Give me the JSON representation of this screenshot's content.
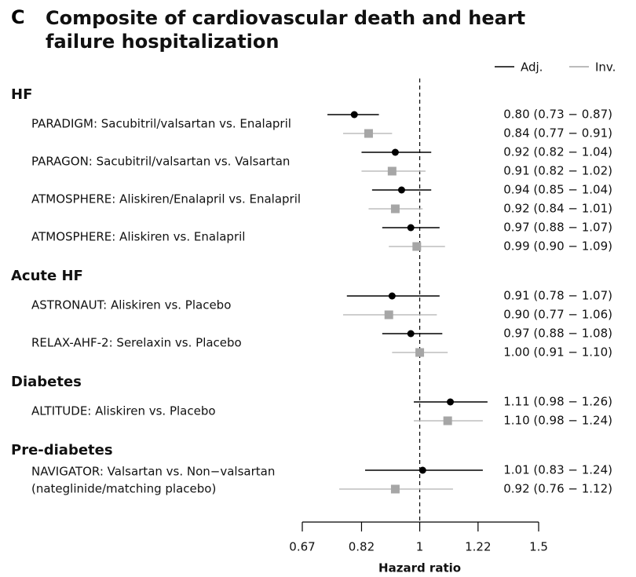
{
  "chart_data": {
    "type": "forest",
    "panel_label": "C",
    "title": "Composite of cardiovascular death and heart failure hospitalization",
    "xlabel": "Hazard ratio",
    "xscale": "log",
    "xlim": [
      0.67,
      1.5
    ],
    "xticks": [
      0.67,
      0.82,
      1,
      1.22,
      1.5
    ],
    "reference_line": 1,
    "series": [
      {
        "name": "Adj.",
        "color": "#000000"
      },
      {
        "name": "Inv.",
        "color": "#a6a6a6"
      }
    ],
    "groups": [
      {
        "name": "HF",
        "categories": [
          "PARADIGM: Sacubitril/valsartan vs. Enalapril",
          "PARAGON: Sacubitril/valsartan vs. Valsartan",
          "ATMOSPHERE: Aliskiren/Enalapril vs. Enalapril",
          "ATMOSPHERE: Aliskiren vs. Enalapril"
        ],
        "series": [
          {
            "values": [
              0.8,
              0.92,
              0.94,
              0.97
            ],
            "lower": [
              0.73,
              0.82,
              0.85,
              0.88
            ],
            "upper": [
              0.87,
              1.04,
              1.04,
              1.07
            ],
            "value_labels": [
              "0.80 (0.73 − 0.87)",
              "0.92 (0.82 − 1.04)",
              "0.94 (0.85 − 1.04)",
              "0.97 (0.88 − 1.07)"
            ]
          },
          {
            "values": [
              0.84,
              0.91,
              0.92,
              0.99
            ],
            "lower": [
              0.77,
              0.82,
              0.84,
              0.9
            ],
            "upper": [
              0.91,
              1.02,
              1.01,
              1.09
            ],
            "value_labels": [
              "0.84 (0.77 − 0.91)",
              "0.91 (0.82 − 1.02)",
              "0.92 (0.84 − 1.01)",
              "0.99 (0.90 − 1.09)"
            ]
          }
        ]
      },
      {
        "name": "Acute HF",
        "categories": [
          "ASTRONAUT: Aliskiren vs. Placebo",
          "RELAX-AHF-2: Serelaxin vs. Placebo"
        ],
        "series": [
          {
            "values": [
              0.91,
              0.97
            ],
            "lower": [
              0.78,
              0.88
            ],
            "upper": [
              1.07,
              1.08
            ],
            "value_labels": [
              "0.91 (0.78 − 1.07)",
              "0.97 (0.88 − 1.08)"
            ]
          },
          {
            "values": [
              0.9,
              1.0
            ],
            "lower": [
              0.77,
              0.91
            ],
            "upper": [
              1.06,
              1.1
            ],
            "value_labels": [
              "0.90 (0.77 − 1.06)",
              "1.00 (0.91 − 1.10)"
            ]
          }
        ]
      },
      {
        "name": "Diabetes",
        "categories": [
          "ALTITUDE: Aliskiren vs. Placebo"
        ],
        "series": [
          {
            "values": [
              1.11
            ],
            "lower": [
              0.98
            ],
            "upper": [
              1.26
            ],
            "value_labels": [
              "1.11 (0.98 − 1.26)"
            ]
          },
          {
            "values": [
              1.1
            ],
            "lower": [
              0.98
            ],
            "upper": [
              1.24
            ],
            "value_labels": [
              "1.10 (0.98 − 1.24)"
            ]
          }
        ]
      },
      {
        "name": "Pre-diabetes",
        "categories": [
          [
            "NAVIGATOR: Valsartan vs. Non−valsartan",
            "(nateglinide/matching placebo)"
          ]
        ],
        "series": [
          {
            "values": [
              1.01
            ],
            "lower": [
              0.83
            ],
            "upper": [
              1.24
            ],
            "value_labels": [
              "1.01 (0.83 − 1.24)"
            ]
          },
          {
            "values": [
              0.92
            ],
            "lower": [
              0.76
            ],
            "upper": [
              1.12
            ],
            "value_labels": [
              "0.92 (0.76 − 1.12)"
            ]
          }
        ]
      }
    ]
  }
}
